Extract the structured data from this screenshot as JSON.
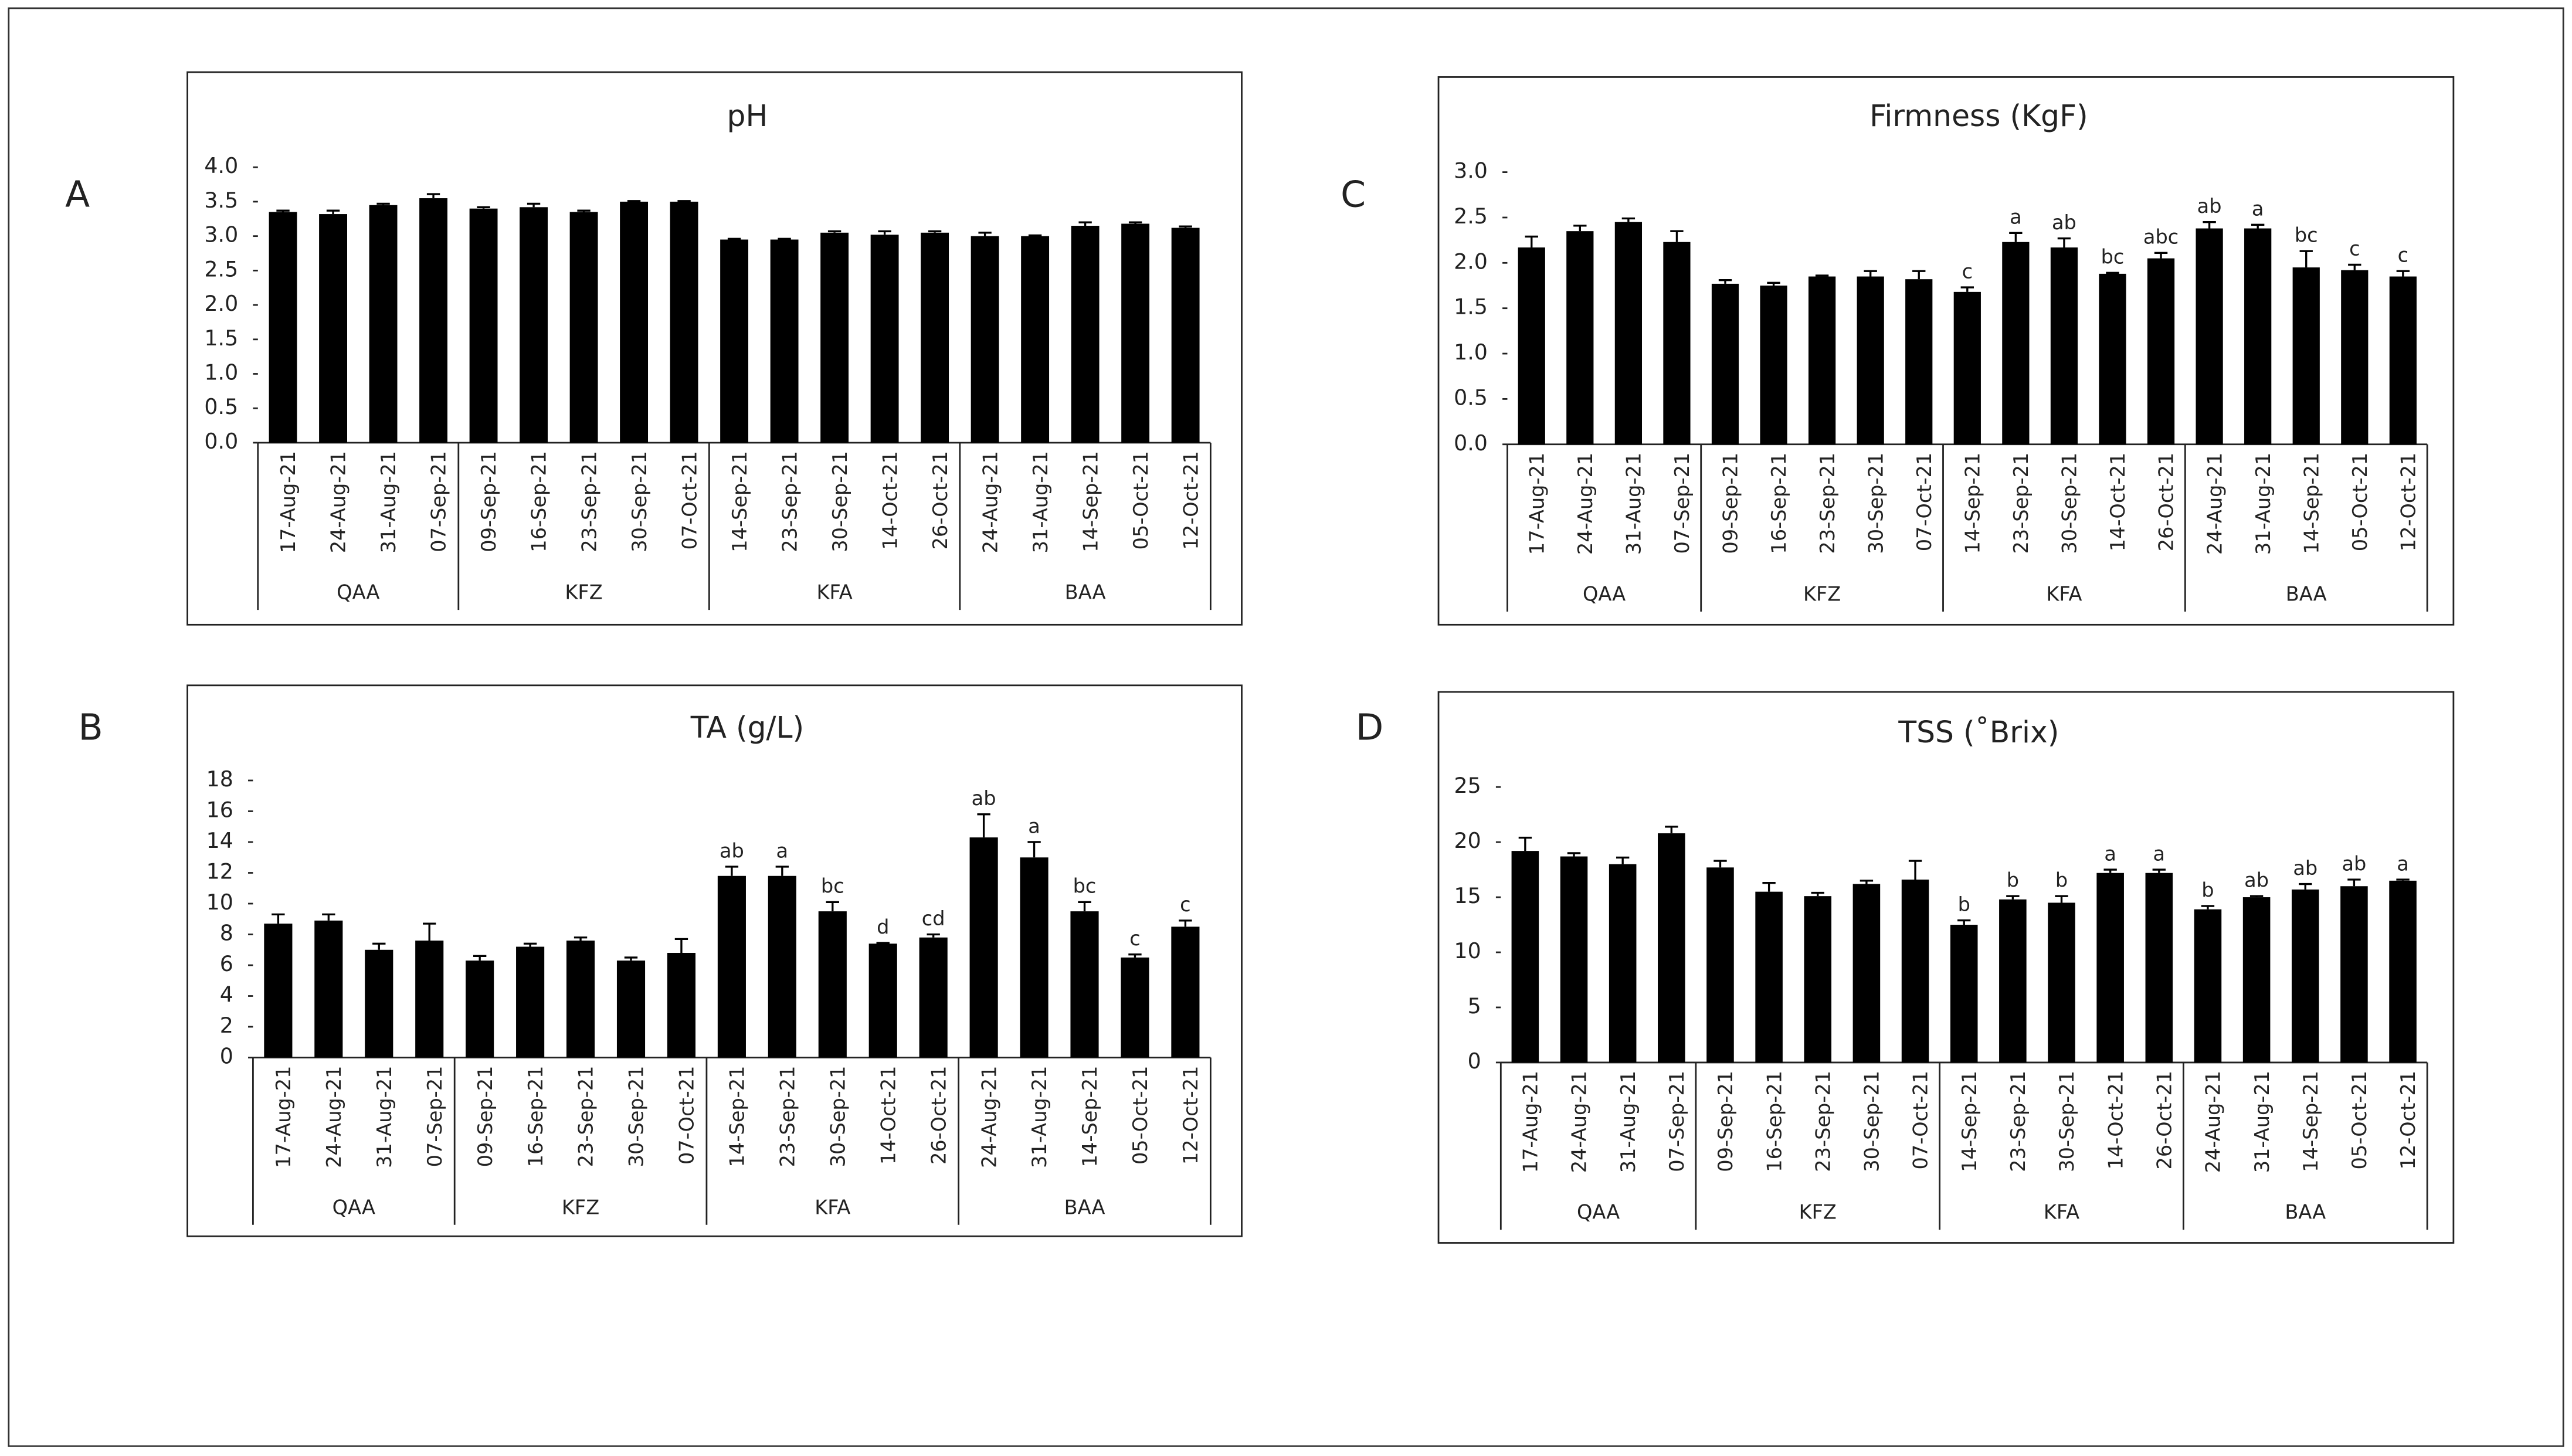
{
  "chart_data": [
    {
      "type": "bar",
      "panel": "A",
      "title": "pH",
      "color": "#000000",
      "ylim": [
        0,
        4
      ],
      "yticks": [
        {
          "value": 0,
          "label": "0.0"
        },
        0.5,
        {
          "value": 1,
          "label": "1.0"
        },
        1.5,
        {
          "value": 2,
          "label": "2.0"
        },
        2.5,
        {
          "value": 3,
          "label": "3.0"
        },
        3.5,
        {
          "value": 4,
          "label": "4.0"
        }
      ],
      "groups": [
        {
          "name": "QAA",
          "categories": [
            "17-Aug-21",
            "24-Aug-21",
            "31-Aug-21",
            "07-Sep-21"
          ],
          "values": [
            3.35,
            3.32,
            3.45,
            3.55
          ],
          "errors": [
            0.02,
            0.05,
            0.02,
            0.06
          ]
        },
        {
          "name": "KFZ",
          "categories": [
            "09-Sep-21",
            "16-Sep-21",
            "23-Sep-21",
            "30-Sep-21",
            "07-Oct-21"
          ],
          "values": [
            3.4,
            3.42,
            3.35,
            3.5,
            3.5
          ],
          "errors": [
            0.02,
            0.05,
            0.02,
            0.01,
            0.01
          ]
        },
        {
          "name": "KFA",
          "categories": [
            "14-Sep-21",
            "23-Sep-21",
            "30-Sep-21",
            "14-Oct-21",
            "26-Oct-21"
          ],
          "values": [
            2.95,
            2.95,
            3.05,
            3.02,
            3.05
          ],
          "errors": [
            0.01,
            0.01,
            0.02,
            0.05,
            0.02
          ]
        },
        {
          "name": "BAA",
          "categories": [
            "24-Aug-21",
            "31-Aug-21",
            "14-Sep-21",
            "05-Oct-21",
            "12-Oct-21"
          ],
          "values": [
            3.0,
            3.0,
            3.15,
            3.18,
            3.12
          ],
          "errors": [
            0.05,
            0.01,
            0.05,
            0.02,
            0.02
          ]
        }
      ]
    },
    {
      "type": "bar",
      "panel": "B",
      "title": "TA (g/L)",
      "color": "#000000",
      "ylim": [
        0,
        18
      ],
      "yticks": [
        0,
        2,
        4,
        6,
        8,
        10,
        12,
        14,
        16,
        18
      ],
      "groups": [
        {
          "name": "QAA",
          "categories": [
            "17-Aug-21",
            "24-Aug-21",
            "31-Aug-21",
            "07-Sep-21"
          ],
          "values": [
            8.7,
            8.9,
            7.0,
            7.6
          ],
          "errors": [
            0.6,
            0.4,
            0.4,
            1.1
          ]
        },
        {
          "name": "KFZ",
          "categories": [
            "09-Sep-21",
            "16-Sep-21",
            "23-Sep-21",
            "30-Sep-21",
            "07-Oct-21"
          ],
          "values": [
            6.3,
            7.2,
            7.6,
            6.3,
            6.8
          ],
          "errors": [
            0.3,
            0.2,
            0.2,
            0.2,
            0.9
          ]
        },
        {
          "name": "KFA",
          "categories": [
            "14-Sep-21",
            "23-Sep-21",
            "30-Sep-21",
            "14-Oct-21",
            "26-Oct-21"
          ],
          "values": [
            11.8,
            11.8,
            9.5,
            7.4,
            7.8
          ],
          "errors": [
            0.6,
            0.6,
            0.6,
            0.05,
            0.2
          ],
          "annotations": [
            "ab",
            "a",
            "bc",
            "d",
            "cd"
          ]
        },
        {
          "name": "BAA",
          "categories": [
            "24-Aug-21",
            "31-Aug-21",
            "14-Sep-21",
            "05-Oct-21",
            "12-Oct-21"
          ],
          "values": [
            14.3,
            13.0,
            9.5,
            6.5,
            8.5
          ],
          "errors": [
            1.5,
            1.0,
            0.6,
            0.2,
            0.4
          ],
          "annotations": [
            "ab",
            "a",
            "bc",
            "c",
            "c"
          ]
        }
      ]
    },
    {
      "type": "bar",
      "panel": "C",
      "title": "Firmness (KgF)",
      "color": "#000000",
      "ylim": [
        0,
        3
      ],
      "yticks": [
        {
          "value": 0,
          "label": "0.0"
        },
        0.5,
        {
          "value": 1,
          "label": "1.0"
        },
        1.5,
        {
          "value": 2,
          "label": "2.0"
        },
        2.5,
        {
          "value": 3,
          "label": "3.0"
        }
      ],
      "groups": [
        {
          "name": "QAA",
          "categories": [
            "17-Aug-21",
            "24-Aug-21",
            "31-Aug-21",
            "07-Sep-21"
          ],
          "values": [
            2.17,
            2.35,
            2.45,
            2.23
          ],
          "errors": [
            0.12,
            0.06,
            0.04,
            0.12
          ]
        },
        {
          "name": "KFZ",
          "categories": [
            "09-Sep-21",
            "16-Sep-21",
            "23-Sep-21",
            "30-Sep-21",
            "07-Oct-21"
          ],
          "values": [
            1.77,
            1.75,
            1.85,
            1.85,
            1.82
          ],
          "errors": [
            0.04,
            0.03,
            0.01,
            0.06,
            0.09
          ]
        },
        {
          "name": "KFA",
          "categories": [
            "14-Sep-21",
            "23-Sep-21",
            "30-Sep-21",
            "14-Oct-21",
            "26-Oct-21"
          ],
          "values": [
            1.68,
            2.23,
            2.17,
            1.88,
            2.05
          ],
          "errors": [
            0.05,
            0.1,
            0.1,
            0.01,
            0.06
          ],
          "annotations": [
            "c",
            "a",
            "ab",
            "bc",
            "abc"
          ]
        },
        {
          "name": "BAA",
          "categories": [
            "24-Aug-21",
            "31-Aug-21",
            "14-Sep-21",
            "05-Oct-21",
            "12-Oct-21"
          ],
          "values": [
            2.38,
            2.38,
            1.95,
            1.92,
            1.85
          ],
          "errors": [
            0.07,
            0.04,
            0.18,
            0.06,
            0.06
          ],
          "annotations": [
            "ab",
            "a",
            "bc",
            "c",
            "c"
          ]
        }
      ]
    },
    {
      "type": "bar",
      "panel": "D",
      "title": "TSS (˚Brix)",
      "color": "#000000",
      "ylim": [
        0,
        25
      ],
      "yticks": [
        0,
        5,
        10,
        15,
        20,
        25
      ],
      "groups": [
        {
          "name": "QAA",
          "categories": [
            "17-Aug-21",
            "24-Aug-21",
            "31-Aug-21",
            "07-Sep-21"
          ],
          "values": [
            19.2,
            18.7,
            18.0,
            20.8
          ],
          "errors": [
            1.2,
            0.3,
            0.6,
            0.6
          ]
        },
        {
          "name": "KFZ",
          "categories": [
            "09-Sep-21",
            "16-Sep-21",
            "23-Sep-21",
            "30-Sep-21",
            "07-Oct-21"
          ],
          "values": [
            17.7,
            15.5,
            15.1,
            16.2,
            16.6
          ],
          "errors": [
            0.6,
            0.8,
            0.3,
            0.3,
            1.7
          ]
        },
        {
          "name": "KFA",
          "categories": [
            "14-Sep-21",
            "23-Sep-21",
            "30-Sep-21",
            "14-Oct-21",
            "26-Oct-21"
          ],
          "values": [
            12.5,
            14.8,
            14.5,
            17.2,
            17.2
          ],
          "errors": [
            0.4,
            0.3,
            0.6,
            0.3,
            0.3
          ],
          "annotations": [
            "b",
            "b",
            "b",
            "a",
            "a"
          ]
        },
        {
          "name": "BAA",
          "categories": [
            "24-Aug-21",
            "31-Aug-21",
            "14-Sep-21",
            "05-Oct-21",
            "12-Oct-21"
          ],
          "values": [
            13.9,
            15.0,
            15.7,
            16.0,
            16.5
          ],
          "errors": [
            0.3,
            0.1,
            0.5,
            0.6,
            0.1
          ],
          "annotations": [
            "b",
            "ab",
            "ab",
            "ab",
            "a"
          ]
        }
      ]
    }
  ]
}
